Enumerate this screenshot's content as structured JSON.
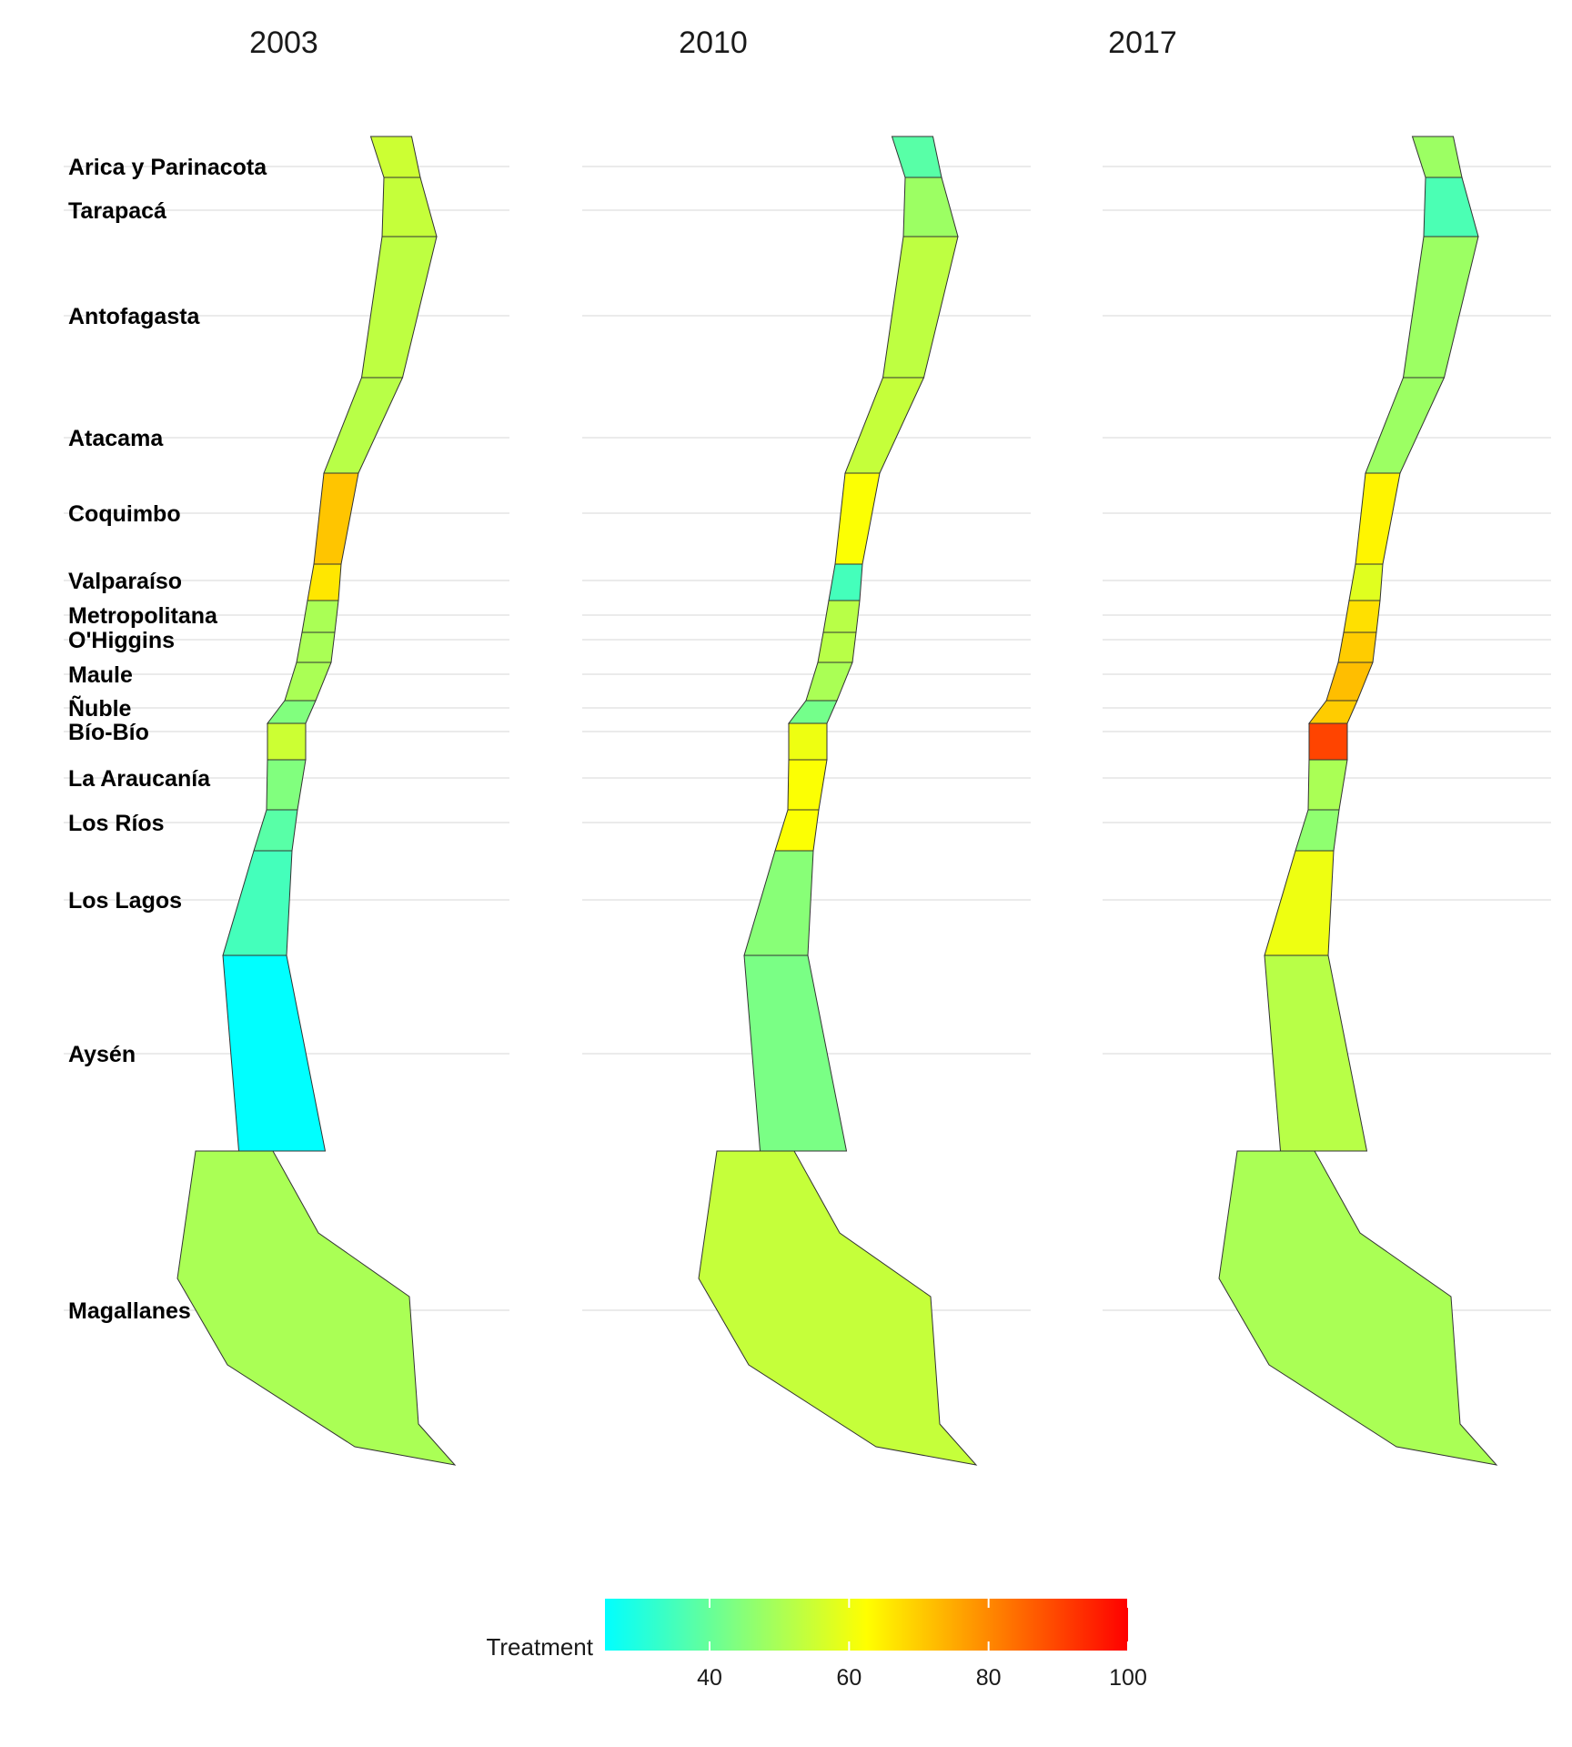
{
  "chart_data": {
    "type": "choropleth",
    "panels": [
      "2003",
      "2010",
      "2017"
    ],
    "regions": [
      "Arica y Parinacota",
      "Tarapacá",
      "Antofagasta",
      "Atacama",
      "Coquimbo",
      "Valparaíso",
      "Metropolitana",
      "O'Higgins",
      "Maule",
      "Ñuble",
      "Bío-Bío",
      "La Araucanía",
      "Los Ríos",
      "Los Lagos",
      "Aysén",
      "Magallanes"
    ],
    "values": {
      "2003": [
        55,
        54,
        53,
        52,
        71,
        66,
        50,
        50,
        50,
        44,
        55,
        44,
        38,
        35,
        25,
        50
      ],
      "2010": [
        38,
        48,
        53,
        54,
        62,
        35,
        52,
        52,
        50,
        42,
        60,
        62,
        62,
        45,
        43,
        54
      ],
      "2017": [
        48,
        36,
        48,
        48,
        64,
        58,
        67,
        70,
        72,
        70,
        90,
        50,
        46,
        60,
        52,
        50
      ]
    },
    "legend": {
      "title": "Treatment",
      "min": 25,
      "max": 100,
      "ticks": [
        40,
        60,
        80,
        100
      ],
      "gradient": [
        "#00ffff",
        "#ffff00",
        "#ff0000"
      ],
      "placement": "bottom"
    },
    "grid": true
  }
}
